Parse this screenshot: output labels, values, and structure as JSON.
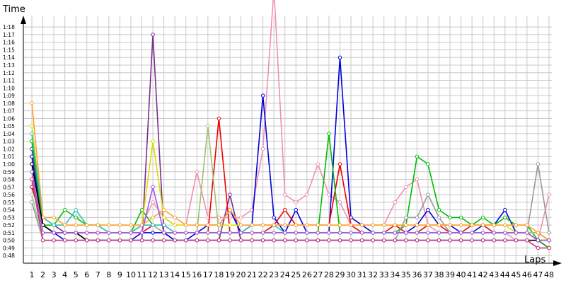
{
  "chart_data": {
    "type": "line",
    "ylabel": "Time",
    "xlabel": "Laps",
    "x": [
      1,
      2,
      3,
      4,
      5,
      6,
      7,
      8,
      9,
      10,
      11,
      12,
      13,
      14,
      15,
      16,
      17,
      18,
      19,
      20,
      21,
      22,
      23,
      24,
      25,
      26,
      27,
      28,
      29,
      30,
      31,
      32,
      33,
      34,
      35,
      36,
      37,
      38,
      39,
      40,
      41,
      42,
      43,
      44,
      45,
      46,
      47,
      48
    ],
    "y_ticks": [
      "0:48",
      "0:49",
      "0:50",
      "0:51",
      "0:52",
      "0:53",
      "0:54",
      "0:55",
      "0:56",
      "0:57",
      "0:58",
      "0:59",
      "1:00",
      "1:01",
      "1:02",
      "1:03",
      "1:04",
      "1:05",
      "1:06",
      "1:07",
      "1:08",
      "1:09",
      "1:10",
      "1:11",
      "1:12",
      "1:13",
      "1:14",
      "1:15",
      "1:16",
      "1:17",
      "1:18"
    ],
    "ylim_seconds": [
      47,
      79.5
    ],
    "grid": true,
    "legend": "none",
    "series": [
      {
        "color": "#7b2d8e",
        "values": [
          62,
          53,
          52,
          51,
          51,
          50,
          50,
          50,
          50,
          50,
          50,
          77,
          51,
          50,
          50,
          50,
          50,
          50,
          56,
          50,
          50,
          50,
          50,
          50,
          50,
          50,
          50,
          50,
          50,
          50,
          50,
          50,
          50,
          50,
          50,
          50,
          50,
          50,
          50,
          50,
          50,
          50,
          50,
          50,
          50,
          50,
          50,
          49
        ]
      },
      {
        "color": "#f090b0",
        "values": [
          60,
          52,
          51,
          51,
          51,
          51,
          51,
          51,
          51,
          51,
          52,
          55,
          53,
          52,
          52,
          59,
          53,
          53,
          53,
          53,
          54,
          62,
          83,
          56,
          55,
          56,
          60,
          56,
          55,
          52,
          52,
          52,
          52,
          55,
          57,
          58,
          52,
          51,
          51,
          51,
          51,
          51,
          51,
          51,
          50,
          50,
          50,
          56
        ]
      },
      {
        "color": "#0000dd",
        "values": [
          61,
          52,
          51,
          50,
          50,
          50,
          50,
          50,
          50,
          50,
          51,
          51,
          51,
          50,
          50,
          51,
          52,
          52,
          54,
          51,
          52,
          69,
          53,
          51,
          54,
          51,
          51,
          51,
          74,
          53,
          52,
          51,
          51,
          51,
          51,
          52,
          54,
          52,
          52,
          51,
          51,
          52,
          52,
          54,
          51,
          51,
          50,
          49
        ]
      },
      {
        "color": "#ee0000",
        "values": [
          57,
          52,
          51,
          51,
          51,
          51,
          51,
          51,
          51,
          51,
          51,
          52,
          51,
          51,
          51,
          51,
          51,
          66,
          51,
          51,
          51,
          51,
          52,
          54,
          52,
          52,
          52,
          52,
          60,
          52,
          51,
          51,
          51,
          52,
          51,
          51,
          52,
          52,
          51,
          51,
          52,
          52,
          51,
          51,
          51,
          51,
          50,
          49
        ]
      },
      {
        "color": "#00bb00",
        "values": [
          63,
          52,
          52,
          54,
          53,
          52,
          52,
          51,
          51,
          51,
          54,
          52,
          52,
          51,
          51,
          51,
          51,
          51,
          51,
          51,
          51,
          51,
          51,
          51,
          51,
          51,
          51,
          64,
          51,
          51,
          51,
          51,
          51,
          51,
          52,
          61,
          60,
          54,
          53,
          53,
          52,
          53,
          52,
          53,
          52,
          52,
          50,
          49
        ]
      },
      {
        "color": "#dddd00",
        "values": [
          65,
          53,
          52,
          52,
          52,
          52,
          52,
          52,
          52,
          52,
          52,
          63,
          53,
          52,
          52,
          52,
          52,
          52,
          52,
          52,
          52,
          52,
          52,
          52,
          52,
          52,
          52,
          52,
          52,
          52,
          52,
          52,
          52,
          52,
          52,
          52,
          52,
          52,
          52,
          52,
          52,
          52,
          52,
          52,
          51,
          51,
          51,
          50
        ]
      },
      {
        "color": "#a0c070",
        "values": [
          58,
          52,
          51,
          51,
          51,
          51,
          51,
          51,
          51,
          51,
          52,
          52,
          51,
          51,
          51,
          51,
          65,
          51,
          51,
          51,
          51,
          51,
          51,
          51,
          51,
          51,
          51,
          51,
          51,
          51,
          51,
          51,
          51,
          51,
          51,
          51,
          51,
          51,
          51,
          51,
          51,
          51,
          51,
          51,
          51,
          51,
          51,
          50
        ]
      },
      {
        "color": "#999999",
        "values": [
          55,
          50,
          50,
          50,
          50,
          50,
          50,
          50,
          50,
          50,
          50,
          50,
          50,
          50,
          50,
          50,
          50,
          50,
          50,
          50,
          50,
          50,
          50,
          50,
          50,
          50,
          50,
          50,
          50,
          50,
          50,
          50,
          50,
          50,
          53,
          53,
          56,
          53,
          51,
          51,
          51,
          51,
          51,
          51,
          51,
          51,
          60,
          51
        ]
      },
      {
        "color": "#30c0c0",
        "values": [
          64,
          53,
          52,
          52,
          54,
          52,
          52,
          51,
          51,
          51,
          52,
          52,
          52,
          51,
          51,
          51,
          51,
          51,
          51,
          51,
          52,
          52,
          52,
          51,
          51,
          51,
          51,
          51,
          51,
          51,
          51,
          51,
          51,
          51,
          51,
          51,
          51,
          51,
          51,
          51,
          51,
          51,
          51,
          51,
          51,
          51,
          50,
          50
        ]
      },
      {
        "color": "#ffa030",
        "values": [
          68,
          53,
          53,
          52,
          52,
          52,
          52,
          52,
          52,
          52,
          52,
          53,
          54,
          53,
          52,
          52,
          52,
          52,
          54,
          52,
          52,
          52,
          52,
          52,
          52,
          52,
          52,
          52,
          52,
          52,
          52,
          52,
          52,
          52,
          52,
          52,
          52,
          52,
          52,
          52,
          52,
          52,
          52,
          52,
          52,
          52,
          51,
          50
        ]
      },
      {
        "color": "#000000",
        "values": [
          60,
          52,
          51,
          51,
          51,
          50,
          50,
          50,
          50,
          50,
          50,
          50,
          50,
          50,
          50,
          50,
          50,
          50,
          50,
          50,
          50,
          50,
          50,
          50,
          50,
          50,
          50,
          50,
          50,
          50,
          50,
          50,
          50,
          50,
          50,
          50,
          50,
          50,
          50,
          50,
          50,
          50,
          50,
          50,
          50,
          50,
          50,
          50
        ]
      },
      {
        "color": "#aa55dd",
        "values": [
          59,
          51,
          51,
          51,
          51,
          51,
          51,
          51,
          51,
          51,
          51,
          57,
          51,
          51,
          51,
          51,
          51,
          51,
          51,
          51,
          51,
          51,
          51,
          51,
          51,
          51,
          51,
          51,
          51,
          51,
          51,
          51,
          51,
          51,
          51,
          51,
          51,
          51,
          51,
          51,
          51,
          51,
          51,
          51,
          51,
          51,
          50,
          50
        ]
      },
      {
        "color": "#88dd88",
        "values": [
          56,
          50,
          50,
          50,
          50,
          50,
          50,
          50,
          50,
          50,
          50,
          50,
          50,
          50,
          50,
          50,
          50,
          50,
          50,
          50,
          50,
          50,
          50,
          50,
          50,
          50,
          50,
          50,
          50,
          50,
          50,
          50,
          50,
          50,
          50,
          50,
          50,
          50,
          50,
          50,
          50,
          50,
          50,
          50,
          50,
          50,
          49,
          49
        ]
      },
      {
        "color": "#cc3388",
        "values": [
          58,
          50,
          50,
          50,
          50,
          50,
          50,
          50,
          50,
          50,
          50,
          50,
          50,
          50,
          50,
          50,
          50,
          50,
          50,
          50,
          50,
          50,
          50,
          50,
          50,
          50,
          50,
          50,
          50,
          50,
          50,
          50,
          50,
          50,
          50,
          50,
          50,
          50,
          50,
          50,
          50,
          50,
          50,
          50,
          50,
          50,
          49,
          49
        ]
      }
    ]
  }
}
